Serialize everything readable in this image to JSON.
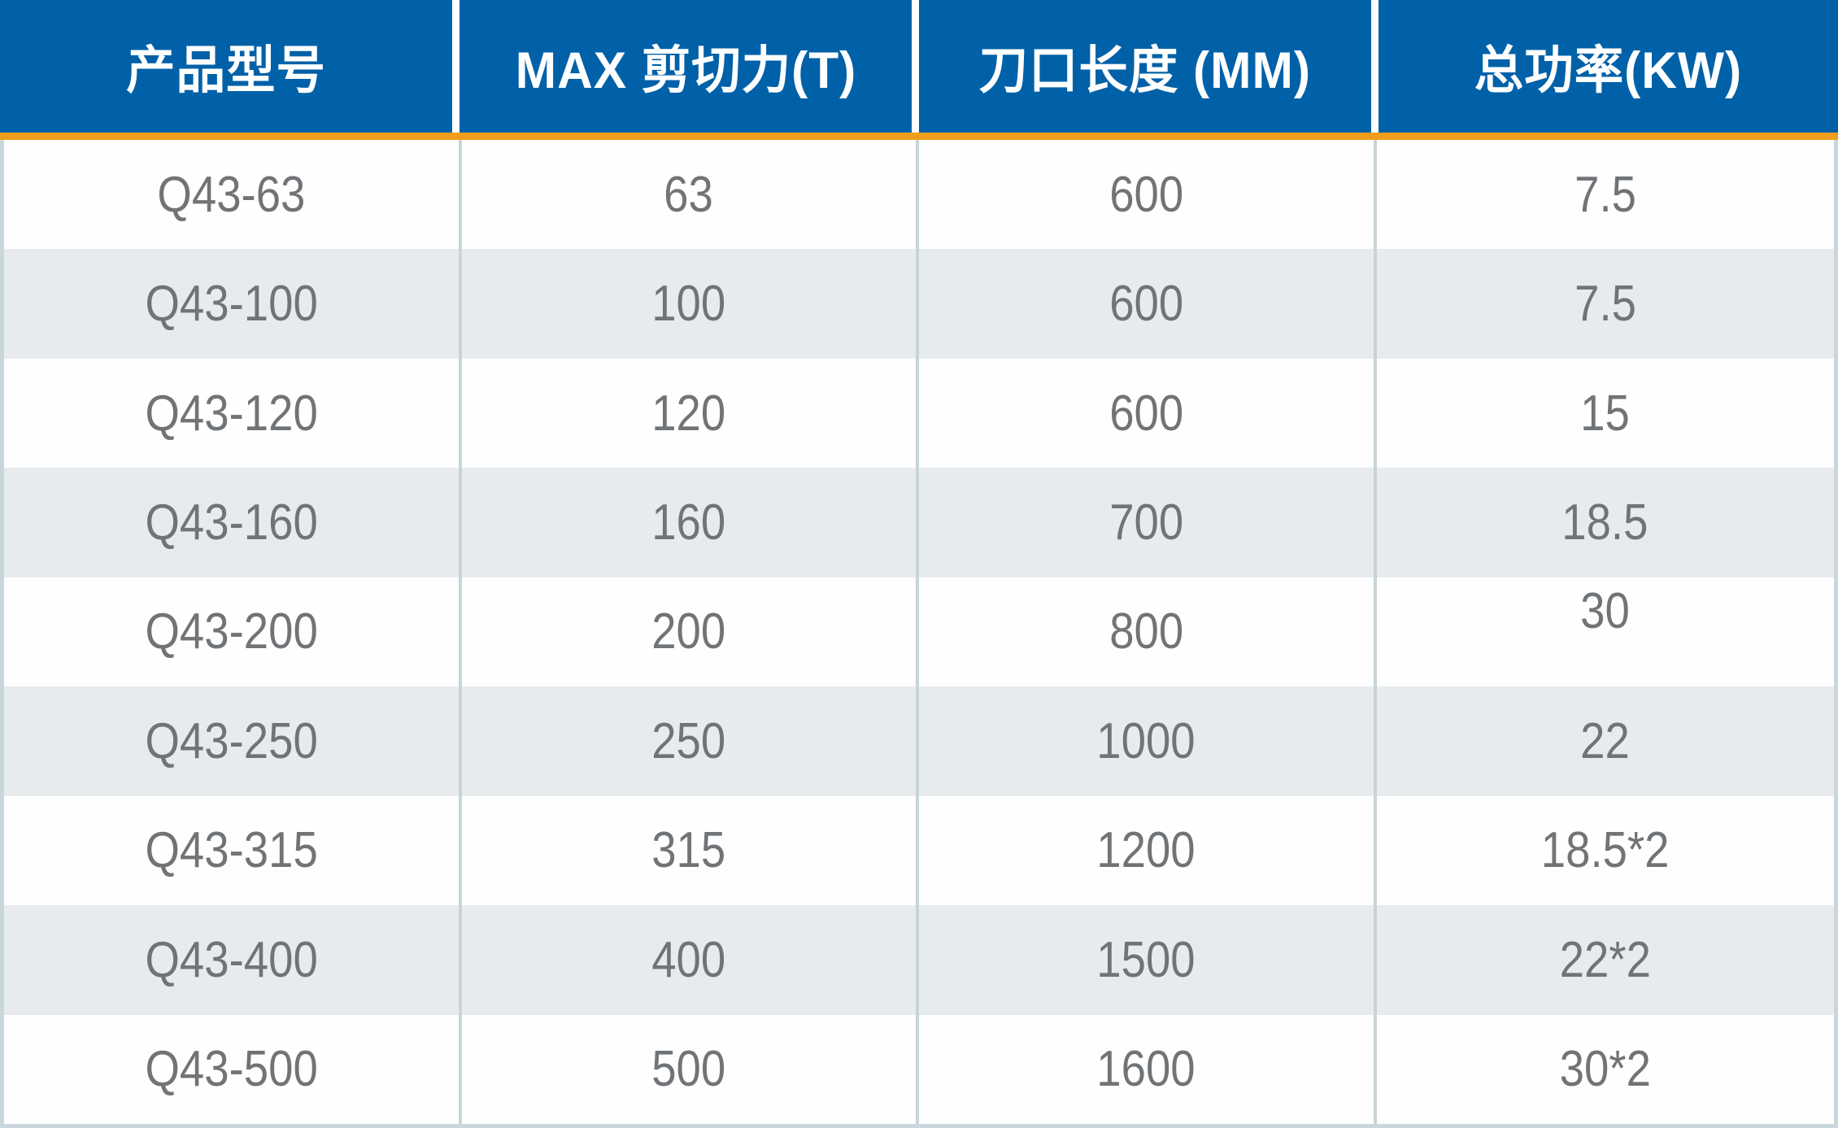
{
  "table": {
    "columns": [
      {
        "label": "产品型号"
      },
      {
        "label": "MAX 剪切力(T)"
      },
      {
        "label": "刀口长度 (MM)"
      },
      {
        "label": "总功率(KW)"
      }
    ],
    "rows": [
      {
        "model": "Q43-63",
        "shear": "63",
        "blade": "600",
        "power": "7.5",
        "power_raised": false
      },
      {
        "model": "Q43-100",
        "shear": "100",
        "blade": "600",
        "power": "7.5",
        "power_raised": false
      },
      {
        "model": "Q43-120",
        "shear": "120",
        "blade": "600",
        "power": "15",
        "power_raised": false
      },
      {
        "model": "Q43-160",
        "shear": "160",
        "blade": "700",
        "power": "18.5",
        "power_raised": false
      },
      {
        "model": "Q43-200",
        "shear": "200",
        "blade": "800",
        "power": "30",
        "power_raised": true
      },
      {
        "model": "Q43-250",
        "shear": "250",
        "blade": "1000",
        "power": "22",
        "power_raised": false
      },
      {
        "model": "Q43-315",
        "shear": "315",
        "blade": "1200",
        "power": "18.5*2",
        "power_raised": false
      },
      {
        "model": "Q43-400",
        "shear": "400",
        "blade": "1500",
        "power": "22*2",
        "power_raised": false
      },
      {
        "model": "Q43-500",
        "shear": "500",
        "blade": "1600",
        "power": "30*2",
        "power_raised": false
      }
    ]
  },
  "colors": {
    "header_bg": "#0061a8",
    "accent_orange": "#f09d1b",
    "row_bg": "#fefefe",
    "row_alt_bg": "#e8ebee",
    "frame_border": "#c9d6dc",
    "column_separator": "#c6d4db",
    "header_text": "#ffffff",
    "body_text": "#717477"
  }
}
